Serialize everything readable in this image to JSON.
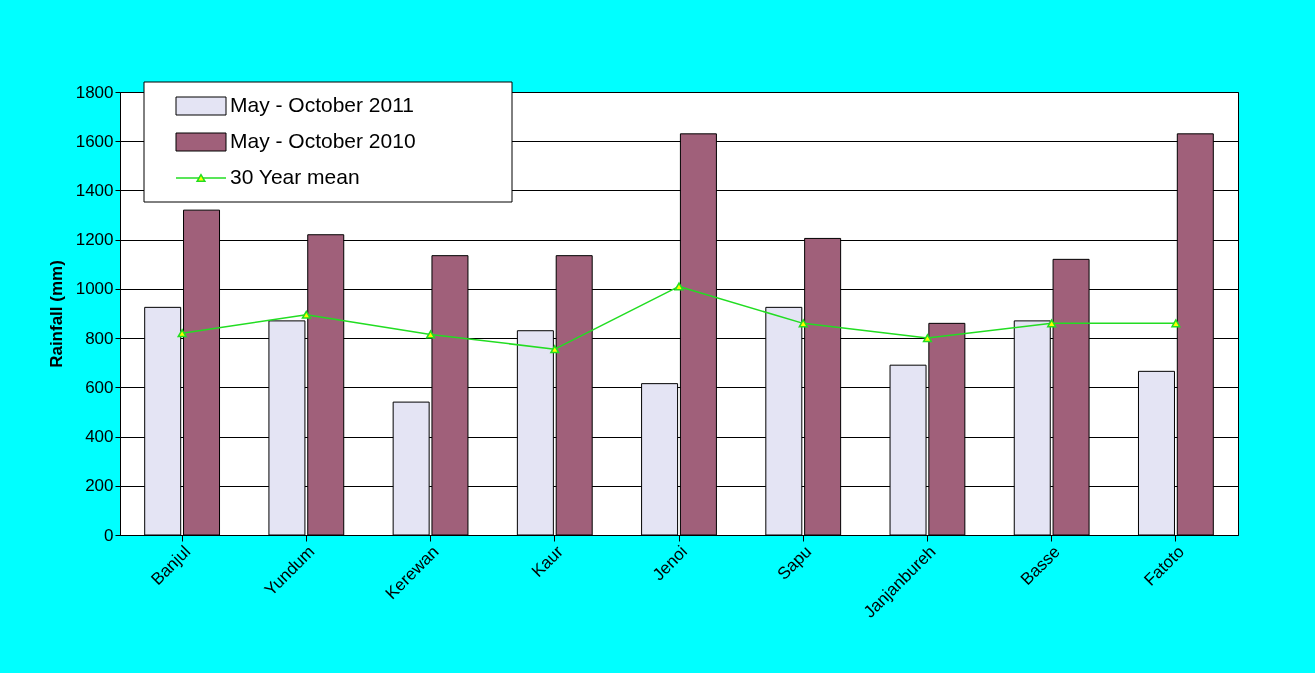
{
  "chart_data": {
    "type": "bar",
    "ylabel": "Rainfall (mm)",
    "categories": [
      "Banjul",
      "Yundum",
      "Kerewan",
      "Kaur",
      "Jenoi",
      "Sapu",
      "Janjanbureh",
      "Basse",
      "Fatoto"
    ],
    "series": [
      {
        "name": "May - October 2011",
        "color": "#e4e4f4",
        "values": [
          925,
          870,
          540,
          830,
          615,
          925,
          690,
          870,
          665
        ]
      },
      {
        "name": "May - October 2010",
        "color": "#a0607a",
        "values": [
          1320,
          1220,
          1135,
          1135,
          1630,
          1205,
          860,
          1120,
          1630
        ]
      },
      {
        "name": "30 Year mean",
        "color": "#22dd22",
        "type": "line",
        "marker": "triangle",
        "values": [
          820,
          895,
          815,
          755,
          1010,
          860,
          800,
          860,
          860
        ]
      }
    ],
    "ylim": [
      0,
      1800
    ],
    "yticks": [
      0,
      200,
      400,
      600,
      800,
      1000,
      1200,
      1400,
      1600,
      1800
    ],
    "grid": "y",
    "legend": "top left"
  }
}
